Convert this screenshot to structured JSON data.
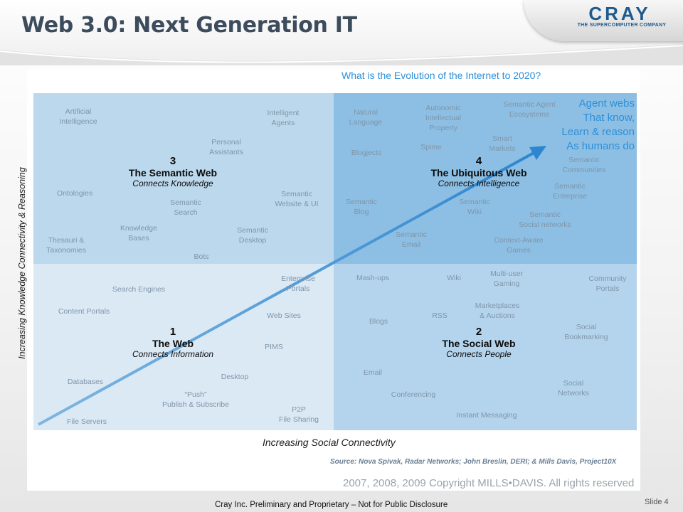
{
  "slide": {
    "title": "Web 3.0: Next Generation IT",
    "logo_text": "CRAY",
    "logo_tagline": "THE SUPERCOMPUTER COMPANY",
    "footer": "Cray Inc. Preliminary and Proprietary – Not for Public Disclosure",
    "slide_number": "Slide 4"
  },
  "diagram": {
    "heading": "What is the Evolution of the Internet to 2020?",
    "y_axis": "Increasing Knowledge Connectivity & Reasoning",
    "x_axis": "Increasing Social Connectivity",
    "source": "Source: Nova Spivak, Radar Networks; John Breslin, DERI; & Mills Davis, Project10X",
    "copyright": "2007, 2008, 2009 Copyright MILLS•DAVIS. All rights reserved",
    "agent_text": [
      "Agent webs",
      "That know,",
      "Learn & reason",
      "As humans do"
    ],
    "quadrants": [
      {
        "id": "q3",
        "number": "3",
        "name": "The Semantic Web",
        "subtitle": "Connects Knowledge"
      },
      {
        "id": "q4",
        "number": "4",
        "name": "The Ubiquitous Web",
        "subtitle": "Connects Intelligence"
      },
      {
        "id": "q1",
        "number": "1",
        "name": "The Web",
        "subtitle": "Connects Information"
      },
      {
        "id": "q2",
        "number": "2",
        "name": "The Social Web",
        "subtitle": "Connects People"
      }
    ],
    "technologies": [
      [
        "Artificial",
        "Intelligence"
      ],
      [
        "Intelligent",
        "Agents"
      ],
      [
        "Personal",
        "Assistants"
      ],
      [
        "Ontologies"
      ],
      [
        "Semantic",
        "Search"
      ],
      [
        "Semantic",
        "Website & UI"
      ],
      [
        "Knowledge",
        "Bases"
      ],
      [
        "Semantic",
        "Desktop"
      ],
      [
        "Thesauri &",
        "Taxonomies"
      ],
      [
        "Bots"
      ],
      [
        "Natural",
        "Language"
      ],
      [
        "Autonomic",
        "Intellectual",
        "Property"
      ],
      [
        "Semantic Agent",
        "Ecosystems"
      ],
      [
        "Smart",
        "Markets"
      ],
      [
        "Blogjects"
      ],
      [
        "Spime"
      ],
      [
        "Semantic",
        "Communities"
      ],
      [
        "Semantic",
        "Enterprise"
      ],
      [
        "Semantic",
        "Blog"
      ],
      [
        "Semantic",
        "Wiki"
      ],
      [
        "Semantic",
        "Social networks"
      ],
      [
        "Semantic",
        "Email"
      ],
      [
        "Context-Aware",
        "Games"
      ],
      [
        "Search Engines"
      ],
      [
        "Enterprise",
        "Portals"
      ],
      [
        "Content Portals"
      ],
      [
        "Web Sites"
      ],
      [
        "PIMS"
      ],
      [
        "Databases"
      ],
      [
        "Desktop"
      ],
      [
        "“Push”",
        "Publish & Subscribe"
      ],
      [
        "P2P",
        "File Sharing"
      ],
      [
        "File Servers"
      ],
      [
        "Mash-ups"
      ],
      [
        "Wiki"
      ],
      [
        "Multi-user",
        "Gaming"
      ],
      [
        "Community",
        "Portals"
      ],
      [
        "Marketplaces",
        "& Auctions"
      ],
      [
        "RSS"
      ],
      [
        "Blogs"
      ],
      [
        "Social",
        "Bookmarking"
      ],
      [
        "Email"
      ],
      [
        "Conferencing"
      ],
      [
        "Social",
        "Networks"
      ],
      [
        "Instant Messaging"
      ]
    ]
  }
}
